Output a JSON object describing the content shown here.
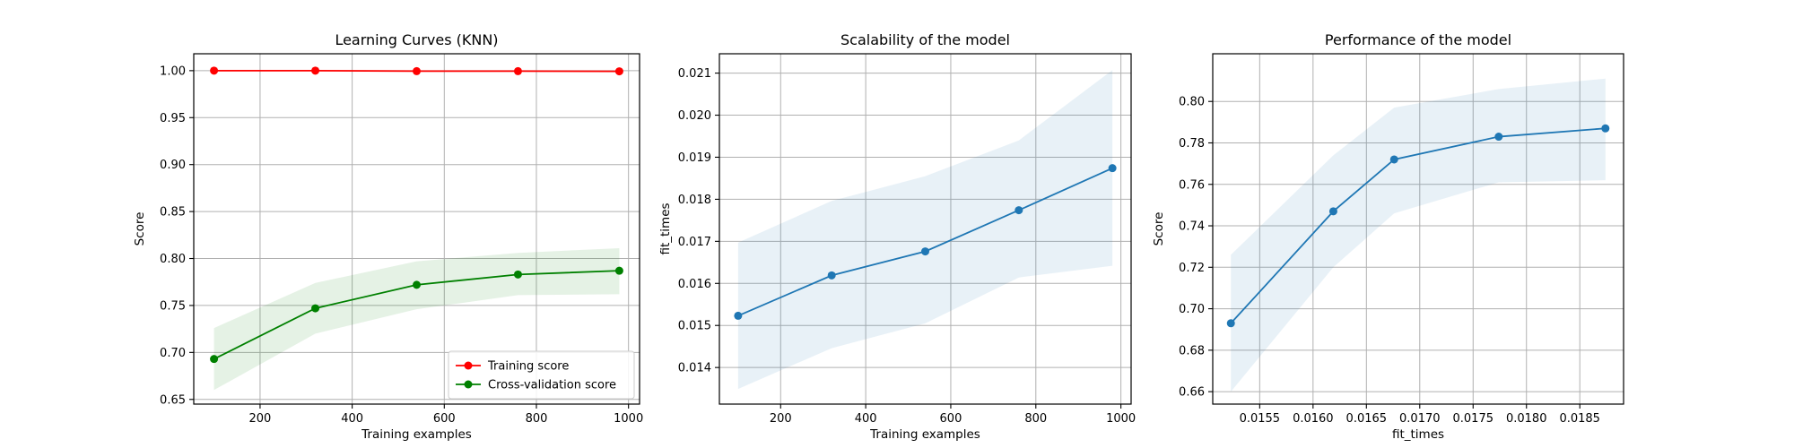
{
  "chart_data": [
    {
      "type": "line",
      "title": "Learning Curves (KNN)",
      "xlabel": "Training examples",
      "ylabel": "Score",
      "xlim": [
        56,
        1024
      ],
      "ylim": [
        0.645,
        1.018
      ],
      "xticks": [
        200,
        400,
        600,
        800,
        1000
      ],
      "yticks": [
        0.65,
        0.7,
        0.75,
        0.8,
        0.85,
        0.9,
        0.95,
        1.0
      ],
      "ytick_format": 2,
      "grid": true,
      "legend": "lower-right",
      "series": [
        {
          "name": "Training score",
          "color": "#ff0000",
          "band_color": "#ff0000",
          "x": [
            100,
            320,
            540,
            760,
            980
          ],
          "y": [
            1.0,
            1.0,
            0.9995,
            0.9995,
            0.9993
          ],
          "lower": [
            0.999,
            0.999,
            0.9985,
            0.9985,
            0.9983
          ],
          "upper": [
            1.001,
            1.001,
            1.0005,
            1.0005,
            1.0003
          ]
        },
        {
          "name": "Cross-validation score",
          "color": "#008000",
          "band_color": "#008000",
          "x": [
            100,
            320,
            540,
            760,
            980
          ],
          "y": [
            0.693,
            0.747,
            0.772,
            0.783,
            0.787
          ],
          "lower": [
            0.66,
            0.72,
            0.746,
            0.761,
            0.762
          ],
          "upper": [
            0.726,
            0.774,
            0.797,
            0.806,
            0.811
          ]
        }
      ]
    },
    {
      "type": "line",
      "title": "Scalability of the model",
      "xlabel": "Training examples",
      "ylabel": "fit_times",
      "xlim": [
        56,
        1024
      ],
      "ylim": [
        0.01313,
        0.02146
      ],
      "xticks": [
        200,
        400,
        600,
        800,
        1000
      ],
      "yticks": [
        0.014,
        0.015,
        0.016,
        0.017,
        0.018,
        0.019,
        0.02,
        0.021
      ],
      "ytick_format": 3,
      "grid": true,
      "series": [
        {
          "color": "#1f77b4",
          "band_color": "#1f77b4",
          "x": [
            100,
            320,
            540,
            760,
            980
          ],
          "y": [
            0.01523,
            0.01619,
            0.01676,
            0.01774,
            0.01874
          ],
          "lower": [
            0.01349,
            0.01446,
            0.01505,
            0.01614,
            0.01642
          ],
          "upper": [
            0.01697,
            0.01796,
            0.01855,
            0.0194,
            0.02107
          ]
        }
      ]
    },
    {
      "type": "line",
      "title": "Performance of the model",
      "xlabel": "fit_times",
      "ylabel": "Score",
      "xlim": [
        0.01506,
        0.01891
      ],
      "ylim": [
        0.654,
        0.823
      ],
      "xticks": [
        0.0155,
        0.016,
        0.0165,
        0.017,
        0.0175,
        0.018,
        0.0185
      ],
      "xtick_format": 4,
      "yticks": [
        0.66,
        0.68,
        0.7,
        0.72,
        0.74,
        0.76,
        0.78,
        0.8
      ],
      "ytick_format": 2,
      "grid": true,
      "series": [
        {
          "color": "#1f77b4",
          "band_color": "#1f77b4",
          "x": [
            0.01523,
            0.01619,
            0.01676,
            0.01774,
            0.01874
          ],
          "y": [
            0.693,
            0.747,
            0.772,
            0.783,
            0.787
          ],
          "lower": [
            0.66,
            0.72,
            0.746,
            0.761,
            0.762
          ],
          "upper": [
            0.726,
            0.774,
            0.797,
            0.806,
            0.811
          ]
        }
      ]
    }
  ]
}
